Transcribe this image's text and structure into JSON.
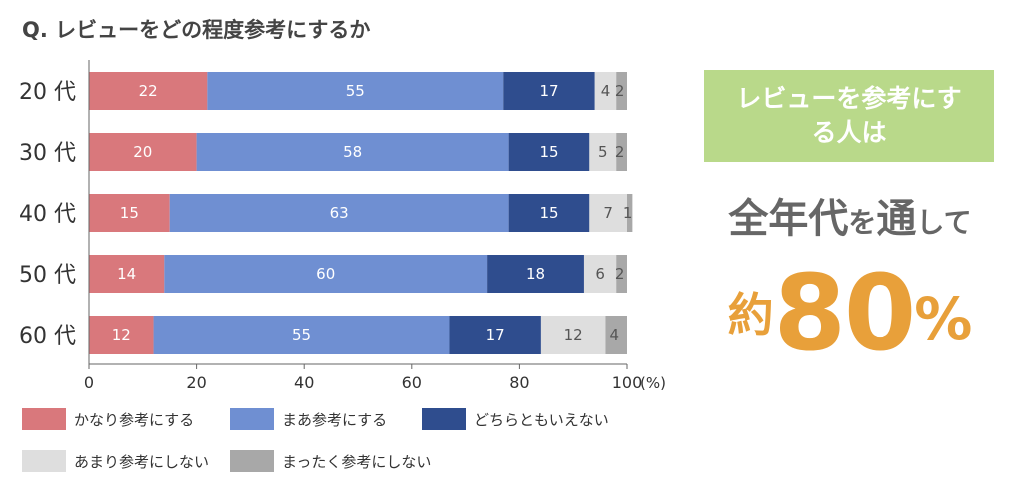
{
  "title": "Q. レビューをどの程度参考にするか",
  "chart_data": {
    "type": "bar",
    "orientation": "horizontal",
    "stacked": true,
    "categories": [
      "20 代",
      "30 代",
      "40 代",
      "50 代",
      "60 代"
    ],
    "series": [
      {
        "name": "かなり参考にする",
        "color": "#d9787c",
        "values": [
          22,
          20,
          15,
          14,
          12
        ]
      },
      {
        "name": "まあ参考にする",
        "color": "#6f8fd2",
        "values": [
          55,
          58,
          63,
          60,
          55
        ]
      },
      {
        "name": "どちらともいえない",
        "color": "#2f4d8e",
        "values": [
          17,
          15,
          15,
          18,
          17
        ]
      },
      {
        "name": "あまり参考にしない",
        "color": "#dedede",
        "values": [
          4,
          5,
          7,
          6,
          12
        ]
      },
      {
        "name": "まったく参考にしない",
        "color": "#a8a8a8",
        "values": [
          2,
          2,
          1,
          2,
          4
        ]
      }
    ],
    "xlim": [
      0,
      100
    ],
    "xticks": [
      0,
      20,
      40,
      60,
      80,
      100
    ],
    "xunit": "(%)",
    "legend_position": "bottom"
  },
  "callout": {
    "box_text": "レビューを参考にする人は",
    "box_color": "#b9d98a",
    "sub_big1": "全年代",
    "sub_small1": "を",
    "sub_big2": "通",
    "sub_small2": "して",
    "prefix": "約",
    "number": "80",
    "percent": "%",
    "accent_color": "#e8a03a"
  }
}
